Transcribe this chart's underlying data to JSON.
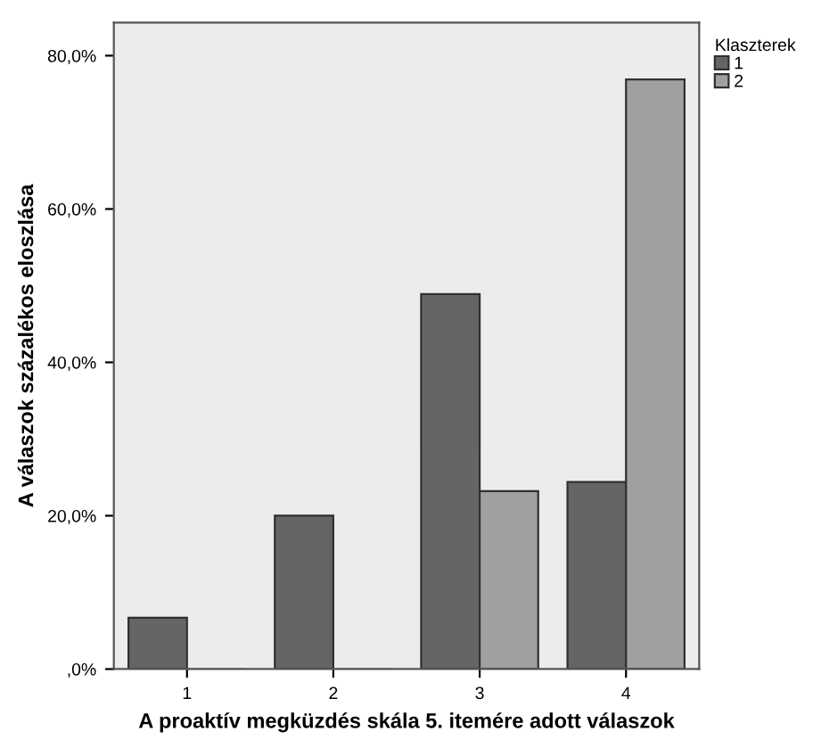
{
  "chart_data": {
    "type": "bar",
    "xlabel": "A proaktív megküzdés skála 5. itemére adott válaszok",
    "ylabel": "A válaszok százalékos eloszlása",
    "legend_title": "Klaszterek",
    "categories": [
      "1",
      "2",
      "3",
      "4"
    ],
    "series": [
      {
        "name": "1",
        "color": "#656568",
        "values": [
          6.7,
          20.0,
          48.9,
          24.4
        ]
      },
      {
        "name": "2",
        "color": "#a0a0a3",
        "values": [
          0,
          0,
          23.2,
          76.9
        ]
      }
    ],
    "ylim": [
      0,
      84.3
    ],
    "yticks": [
      {
        "value": 0,
        "label": ",0%"
      },
      {
        "value": 20,
        "label": "20,0%"
      },
      {
        "value": 40,
        "label": "40,0%"
      },
      {
        "value": 60,
        "label": "60,0%"
      },
      {
        "value": 80,
        "label": "80,0%"
      }
    ],
    "grid": false,
    "legend": "top right"
  }
}
